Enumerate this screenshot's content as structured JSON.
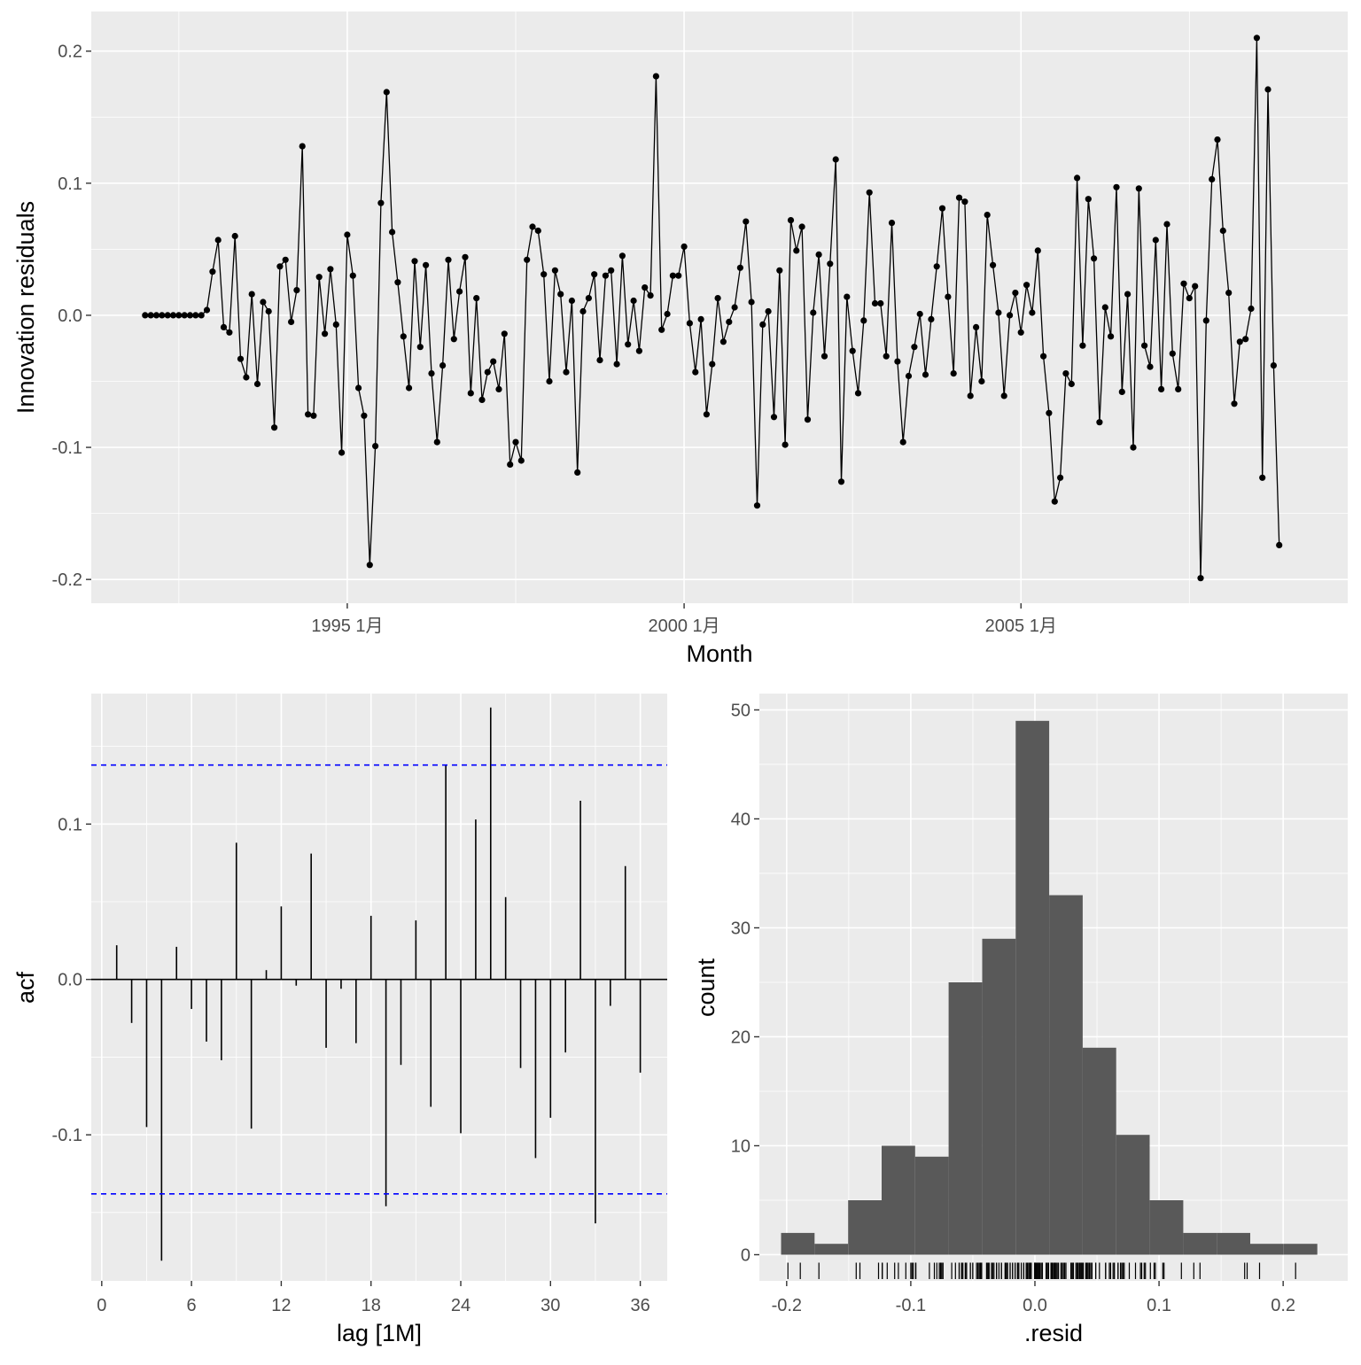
{
  "chart_data": [
    {
      "type": "line",
      "panel": "residuals",
      "title": "",
      "xlabel": "Month",
      "ylabel": "Innovation residuals",
      "x_tick_labels": [
        {
          "label": "1995 1月",
          "x": 1995.0
        },
        {
          "label": "2000 1月",
          "x": 2000.0
        },
        {
          "label": "2005 1月",
          "x": 2005.0
        }
      ],
      "y_tick_labels": [
        "-0.2",
        "-0.1",
        "0.0",
        "0.1",
        "0.2"
      ],
      "y_ticks": [
        -0.2,
        -0.1,
        0.0,
        0.1,
        0.2
      ],
      "xlim": [
        1991.2,
        2009.85
      ],
      "ylim": [
        -0.218,
        0.23
      ],
      "x_start": 1992.0,
      "x_step_months": 1,
      "points": true,
      "series": [
        {
          "values": [
            0.0,
            0.0,
            0.0,
            0.0,
            0.0,
            0.0,
            0.0,
            0.0,
            0.0,
            0.0,
            0.0,
            0.004,
            0.033,
            0.057,
            -0.009,
            -0.013,
            0.06,
            -0.033,
            -0.047,
            0.016,
            -0.052,
            0.01,
            0.003,
            -0.085,
            0.037,
            0.042,
            -0.005,
            0.019,
            0.128,
            -0.075,
            -0.076,
            0.029,
            -0.014,
            0.035,
            -0.007,
            -0.104,
            0.061,
            0.03,
            -0.055,
            -0.076,
            -0.189,
            -0.099,
            0.085,
            0.169,
            0.063,
            0.025,
            -0.016,
            -0.055,
            0.041,
            -0.024,
            0.038,
            -0.044,
            -0.096,
            -0.038,
            0.042,
            -0.018,
            0.018,
            0.044,
            -0.059,
            0.013,
            -0.064,
            -0.043,
            -0.035,
            -0.056,
            -0.014,
            -0.113,
            -0.096,
            -0.11,
            0.042,
            0.067,
            0.064,
            0.031,
            -0.05,
            0.034,
            0.016,
            -0.043,
            0.011,
            -0.119,
            0.003,
            0.013,
            0.031,
            -0.034,
            0.03,
            0.034,
            -0.037,
            0.045,
            -0.022,
            0.011,
            -0.027,
            0.021,
            0.015,
            0.181,
            -0.011,
            0.001,
            0.03,
            0.03,
            0.052,
            -0.006,
            -0.043,
            -0.003,
            -0.075,
            -0.037,
            0.013,
            -0.02,
            -0.005,
            0.006,
            0.036,
            0.071,
            0.01,
            -0.144,
            -0.007,
            0.003,
            -0.077,
            0.034,
            -0.098,
            0.072,
            0.049,
            0.067,
            -0.079,
            0.002,
            0.046,
            -0.031,
            0.039,
            0.118,
            -0.126,
            0.014,
            -0.027,
            -0.059,
            -0.004,
            0.093,
            0.009,
            0.009,
            -0.031,
            0.07,
            -0.035,
            -0.096,
            -0.046,
            -0.024,
            0.001,
            -0.045,
            -0.003,
            0.037,
            0.081,
            0.014,
            -0.044,
            0.089,
            0.086,
            -0.061,
            -0.009,
            -0.05,
            0.076,
            0.038,
            0.002,
            -0.061,
            0.0,
            0.017,
            -0.013,
            0.023,
            0.002,
            0.049,
            -0.031,
            -0.074,
            -0.141,
            -0.123,
            -0.044,
            -0.052,
            0.104,
            -0.023,
            0.088,
            0.043,
            -0.081,
            0.006,
            -0.016,
            0.097,
            -0.058,
            0.016,
            -0.1,
            0.096,
            -0.023,
            -0.039,
            0.057,
            -0.056,
            0.069,
            -0.029,
            -0.056,
            0.024,
            0.013,
            0.022,
            -0.199,
            -0.004,
            0.103,
            0.133,
            0.064,
            0.017,
            -0.067,
            -0.02,
            -0.018,
            0.005,
            0.21,
            -0.123,
            0.171,
            -0.038,
            -0.174
          ]
        }
      ],
      "grid": true
    },
    {
      "type": "bar",
      "panel": "acf",
      "title": "",
      "xlabel": "lag [1M]",
      "ylabel": "acf",
      "x_tick_labels": [
        "0",
        "6",
        "12",
        "18",
        "24",
        "30",
        "36"
      ],
      "x_ticks": [
        0,
        6,
        12,
        18,
        24,
        30,
        36
      ],
      "y_tick_labels": [
        "-0.1",
        "0.0",
        "0.1"
      ],
      "y_ticks": [
        -0.1,
        0.0,
        0.1
      ],
      "xlim": [
        -0.7,
        37.8
      ],
      "ylim": [
        -0.194,
        0.184
      ],
      "lags": [
        1,
        2,
        3,
        4,
        5,
        6,
        7,
        8,
        9,
        10,
        11,
        12,
        13,
        14,
        15,
        16,
        17,
        18,
        19,
        20,
        21,
        22,
        23,
        24,
        25,
        26,
        27,
        28,
        29,
        30,
        31,
        32,
        33,
        34,
        35,
        36
      ],
      "values": [
        0.022,
        -0.028,
        -0.095,
        -0.181,
        0.021,
        -0.019,
        -0.04,
        -0.052,
        0.088,
        -0.096,
        0.006,
        0.047,
        -0.004,
        0.081,
        -0.044,
        -0.006,
        -0.041,
        0.041,
        -0.146,
        -0.055,
        0.038,
        -0.082,
        0.138,
        -0.099,
        0.103,
        0.175,
        0.053,
        -0.057,
        -0.115,
        -0.089,
        -0.047,
        0.115,
        -0.157,
        -0.017,
        0.073,
        -0.06
      ],
      "confidence_bounds": [
        -0.138,
        0.138
      ],
      "bound_color": "#0000ff",
      "grid": true
    },
    {
      "type": "bar",
      "panel": "histogram",
      "title": "",
      "xlabel": ".resid",
      "ylabel": "count",
      "x_tick_labels": [
        "-0.2",
        "-0.1",
        "0.0",
        "0.1",
        "0.2"
      ],
      "x_ticks": [
        -0.2,
        -0.1,
        0.0,
        0.1,
        0.2
      ],
      "y_tick_labels": [
        "0",
        "10",
        "20",
        "30",
        "40",
        "50"
      ],
      "y_ticks": [
        0,
        10,
        20,
        30,
        40,
        50
      ],
      "xlim": [
        -0.222,
        0.252
      ],
      "ylim": [
        -2.4,
        51.5
      ],
      "bin_edges": [
        -0.2045,
        -0.1775,
        -0.1505,
        -0.1235,
        -0.0965,
        -0.0695,
        -0.0425,
        -0.0155,
        0.0115,
        0.0385,
        0.0655,
        0.0925,
        0.1195,
        0.1465,
        0.1735,
        0.2005,
        0.2275
      ],
      "values": [
        2,
        1,
        5,
        10,
        9,
        25,
        29,
        49,
        33,
        19,
        11,
        5,
        2,
        2,
        1,
        1
      ],
      "bar_color": "#595959",
      "rug": true,
      "grid": true
    }
  ]
}
